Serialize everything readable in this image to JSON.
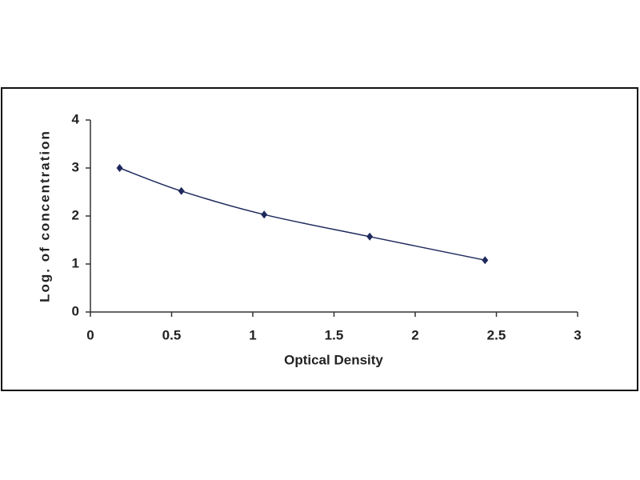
{
  "chart_data": {
    "type": "line",
    "x_label": "Optical Density",
    "y_label": "Log. of concentration",
    "x": [
      0.18,
      0.56,
      1.07,
      1.72,
      2.43
    ],
    "values": [
      3.0,
      2.52,
      2.03,
      1.57,
      1.08
    ],
    "color": "#1f2a5c",
    "smooth": true,
    "xlim": [
      0,
      3
    ],
    "xticks": [
      0,
      0.5,
      1,
      1.5,
      2,
      2.5,
      3
    ],
    "ylim": [
      0,
      4
    ],
    "yticks": [
      0,
      1,
      2,
      3,
      4
    ],
    "grid": false
  }
}
